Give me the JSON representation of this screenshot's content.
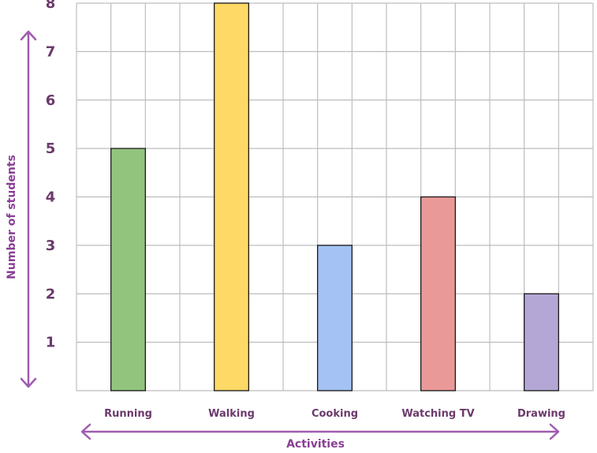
{
  "chart_data": {
    "type": "bar",
    "categories": [
      "Running",
      "Walking",
      "Cooking",
      "Watching TV",
      "Drawing"
    ],
    "values": [
      5,
      8,
      3,
      4,
      2
    ],
    "colors": [
      "#93c47d",
      "#ffd966",
      "#a4c2f4",
      "#ea9999",
      "#b4a7d6"
    ],
    "bar_border_color": "#1a1a1a",
    "grid_color": "#bdbdbd",
    "arrow_color": "#a05bb0",
    "title": "",
    "xlabel": "Activities",
    "ylabel": "Number of students",
    "yticks": [
      1,
      2,
      3,
      4,
      5,
      6,
      7,
      8
    ],
    "ylim": [
      0,
      8
    ],
    "grid": true
  }
}
